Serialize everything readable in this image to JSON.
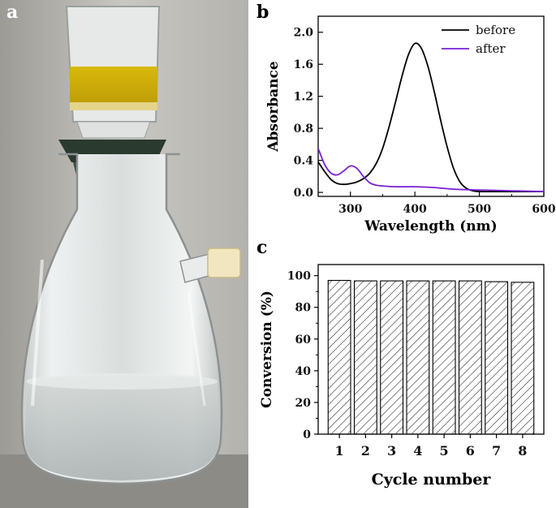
{
  "panels": {
    "a": "a",
    "b": "b",
    "c": "c"
  },
  "chart_data": [
    {
      "type": "line",
      "panel": "b",
      "xlabel": "Wavelength (nm)",
      "ylabel": "Absorbance",
      "xlim": [
        250,
        600
      ],
      "ylim": [
        -0.05,
        2.2
      ],
      "xticks": [
        300,
        400,
        500,
        600
      ],
      "yticks": [
        0.0,
        0.4,
        0.8,
        1.2,
        1.6,
        2.0
      ],
      "ytick_labels": [
        "0.0",
        "0.4",
        "0.8",
        "1.2",
        "1.6",
        "2.0"
      ],
      "legend_position": "top-right",
      "series": [
        {
          "name": "before",
          "color": "#000000",
          "x": [
            250,
            260,
            270,
            280,
            290,
            300,
            310,
            320,
            330,
            340,
            350,
            360,
            370,
            380,
            390,
            400,
            410,
            420,
            430,
            440,
            450,
            460,
            470,
            480,
            490,
            500,
            520,
            550,
            600
          ],
          "y": [
            0.38,
            0.26,
            0.16,
            0.11,
            0.1,
            0.11,
            0.13,
            0.17,
            0.24,
            0.36,
            0.55,
            0.82,
            1.13,
            1.45,
            1.72,
            1.86,
            1.8,
            1.58,
            1.26,
            0.9,
            0.57,
            0.3,
            0.13,
            0.05,
            0.02,
            0.01,
            0.01,
            0.01,
            0.01
          ]
        },
        {
          "name": "after",
          "color": "#7a1fd6",
          "x": [
            250,
            260,
            270,
            280,
            290,
            300,
            310,
            320,
            330,
            340,
            350,
            370,
            400,
            430,
            460,
            500,
            550,
            600
          ],
          "y": [
            0.55,
            0.35,
            0.24,
            0.22,
            0.27,
            0.33,
            0.3,
            0.2,
            0.12,
            0.09,
            0.08,
            0.07,
            0.07,
            0.06,
            0.04,
            0.03,
            0.02,
            0.01
          ]
        }
      ]
    },
    {
      "type": "bar",
      "panel": "c",
      "xlabel": "Cycle number",
      "ylabel": "Conversion (%)",
      "ylim": [
        0,
        107
      ],
      "yticks": [
        0,
        20,
        40,
        60,
        80,
        100
      ],
      "categories": [
        "1",
        "2",
        "3",
        "4",
        "5",
        "6",
        "7",
        "8"
      ],
      "values": [
        97,
        96.7,
        96.7,
        96.7,
        96.7,
        96.7,
        96.2,
        95.8
      ],
      "fill": "diagonal-hatch"
    }
  ]
}
